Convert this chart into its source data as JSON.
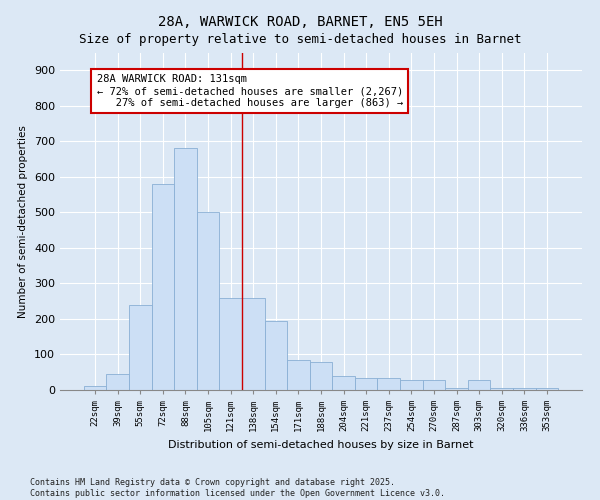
{
  "title": "28A, WARWICK ROAD, BARNET, EN5 5EH",
  "subtitle": "Size of property relative to semi-detached houses in Barnet",
  "xlabel": "Distribution of semi-detached houses by size in Barnet",
  "ylabel": "Number of semi-detached properties",
  "bins": [
    "22sqm",
    "39sqm",
    "55sqm",
    "72sqm",
    "88sqm",
    "105sqm",
    "121sqm",
    "138sqm",
    "154sqm",
    "171sqm",
    "188sqm",
    "204sqm",
    "221sqm",
    "237sqm",
    "254sqm",
    "270sqm",
    "287sqm",
    "303sqm",
    "320sqm",
    "336sqm",
    "353sqm"
  ],
  "values": [
    10,
    45,
    240,
    580,
    680,
    500,
    260,
    260,
    195,
    85,
    80,
    40,
    35,
    35,
    28,
    28,
    5,
    28,
    5,
    5,
    5
  ],
  "bar_color": "#ccdff5",
  "bar_edge_color": "#89afd4",
  "vline_color": "#cc0000",
  "vline_x": 6.5,
  "annotation_text": "28A WARWICK ROAD: 131sqm\n← 72% of semi-detached houses are smaller (2,267)\n   27% of semi-detached houses are larger (863) →",
  "annotation_box_facecolor": "#ffffff",
  "annotation_box_edgecolor": "#cc0000",
  "ylim": [
    0,
    950
  ],
  "yticks": [
    0,
    100,
    200,
    300,
    400,
    500,
    600,
    700,
    800,
    900
  ],
  "background_color": "#dce8f5",
  "footer": "Contains HM Land Registry data © Crown copyright and database right 2025.\nContains public sector information licensed under the Open Government Licence v3.0.",
  "title_fontsize": 10,
  "subtitle_fontsize": 9,
  "xlabel_fontsize": 8,
  "ylabel_fontsize": 7.5,
  "ytick_fontsize": 8,
  "xtick_fontsize": 6.5,
  "annotation_fontsize": 7.5,
  "footer_fontsize": 6
}
